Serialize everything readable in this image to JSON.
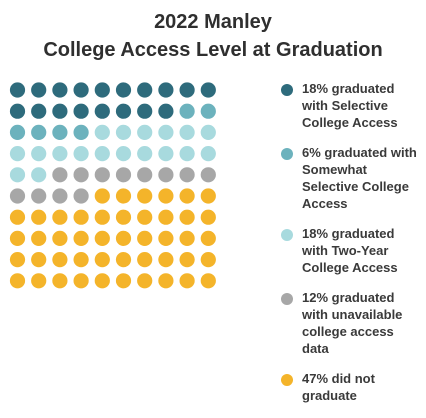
{
  "header": {
    "title_line1": "2022 Manley",
    "title_line2": "College Access Level at Graduation"
  },
  "chart_data": {
    "type": "waffle",
    "grid": {
      "rows": 10,
      "cols": 10,
      "total": 100
    },
    "series": [
      {
        "name": "18% graduated with Selective College Access",
        "value": 18,
        "color": "#2e6b7c"
      },
      {
        "name": "6% graduated with Somewhat Selective College Access",
        "value": 6,
        "color": "#6cb2bd"
      },
      {
        "name": "18% graduated with Two-Year College Access",
        "value": 18,
        "color": "#a8dade"
      },
      {
        "name": "12% graduated with unavailable college access data",
        "value": 12,
        "color": "#a7a7a7"
      },
      {
        "name": "47% did not graduate",
        "value": 47,
        "color": "#f4b42a"
      }
    ]
  },
  "legend": {
    "items": [
      {
        "label": "18% graduated with Selective College Access",
        "color": "#2e6b7c",
        "icon": "circle"
      },
      {
        "label": "6% graduated with Somewhat Selective College Access",
        "color": "#6cb2bd",
        "icon": "circle"
      },
      {
        "label": "18% graduated with Two-Year College Access",
        "color": "#a8dade",
        "icon": "circle"
      },
      {
        "label": "12% graduated with unavailable college access data",
        "color": "#a7a7a7",
        "icon": "circle"
      },
      {
        "label": "47% did not graduate",
        "color": "#f4b42a",
        "icon": "circle"
      }
    ]
  }
}
